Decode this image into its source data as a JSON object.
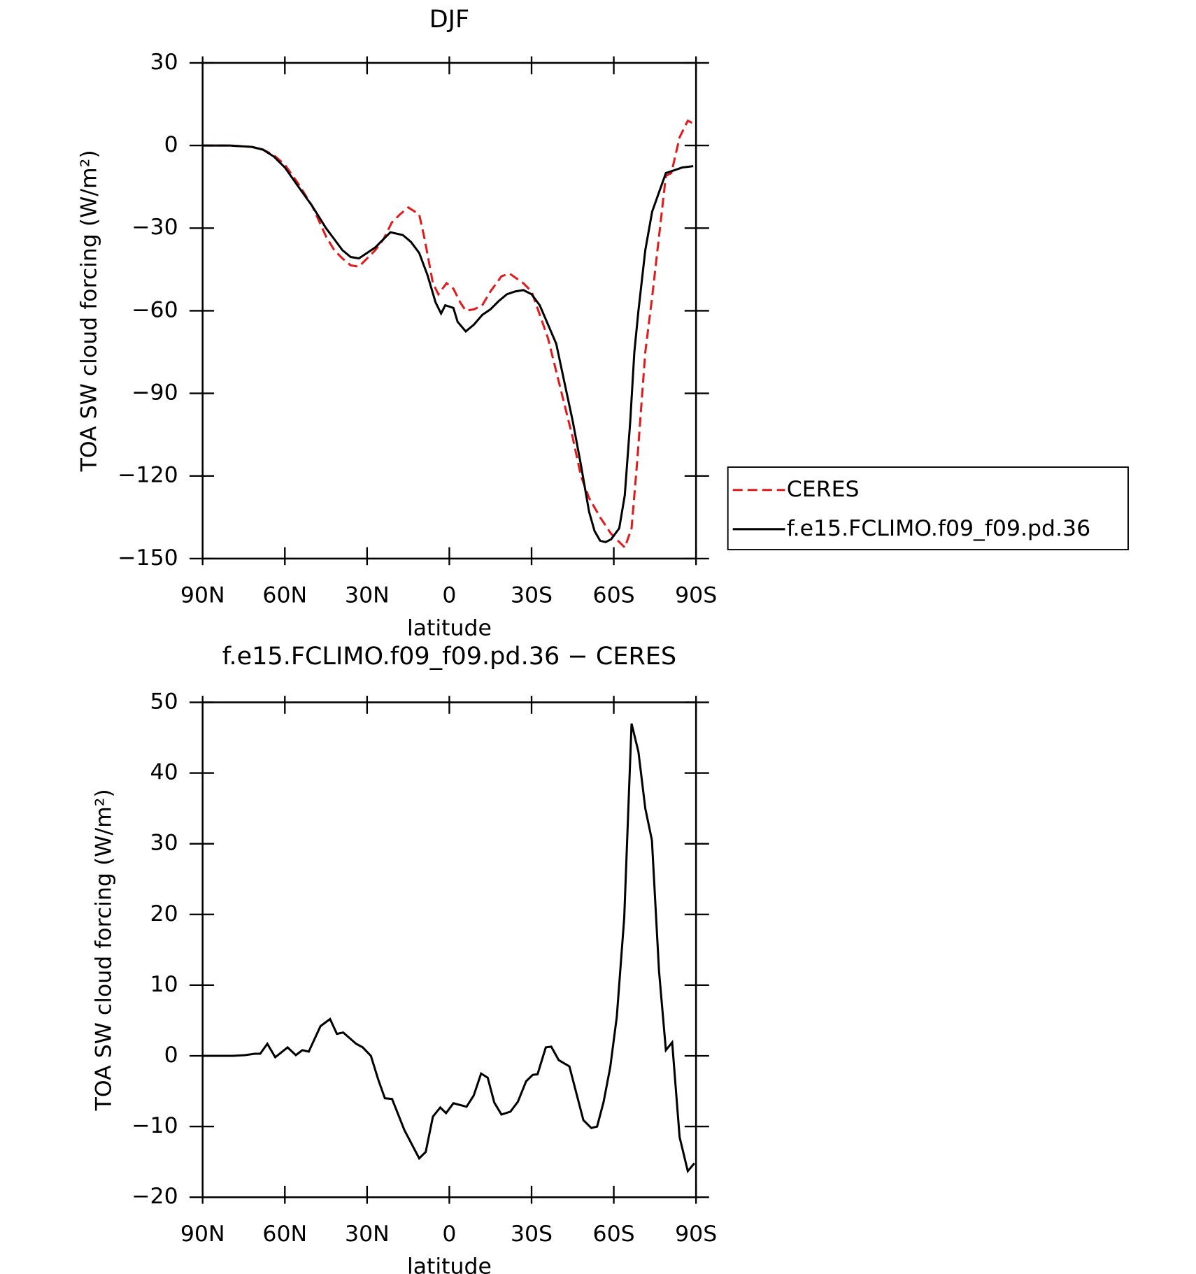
{
  "chart_data": [
    {
      "type": "line",
      "title": "DJF",
      "xlabel": "latitude",
      "ylabel": "TOA SW cloud forcing (W/m²)",
      "xlim": [
        90,
        -90
      ],
      "xticks": [
        {
          "value": 90,
          "label": "90N"
        },
        {
          "value": 60,
          "label": "60N"
        },
        {
          "value": 30,
          "label": "30N"
        },
        0,
        {
          "value": -30,
          "label": "30S"
        },
        {
          "value": -60,
          "label": "60S"
        },
        {
          "value": -90,
          "label": "90S"
        }
      ],
      "ylim": [
        -150,
        30
      ],
      "yticks": [
        {
          "value": -150,
          "label": "−150"
        },
        {
          "value": -120,
          "label": "−120"
        },
        {
          "value": -90,
          "label": "−90"
        },
        {
          "value": -60,
          "label": "−60"
        },
        {
          "value": -30,
          "label": "−30"
        },
        0,
        30
      ],
      "legend": "right",
      "series": [
        {
          "name": "CERES",
          "color": "#e31a1c",
          "linestyle": "dashed",
          "x": [
            90,
            80,
            72,
            68,
            64,
            60,
            55,
            50,
            45,
            42,
            39,
            36,
            33,
            30,
            27,
            24,
            21,
            18,
            15,
            11,
            9,
            6,
            4,
            1,
            -1.5,
            -4,
            -6,
            -9,
            -12,
            -15,
            -19,
            -22,
            -27,
            -30,
            -36,
            -40,
            -45,
            -48,
            -51,
            -55,
            -59,
            -64,
            -66.5,
            -68.5,
            -71.5,
            -74,
            -79,
            -81,
            -84,
            -87,
            -89
          ],
          "values": [
            0,
            0,
            -0.5,
            -1.5,
            -3.5,
            -7,
            -14,
            -22,
            -33,
            -38,
            -41,
            -43.5,
            -44,
            -41,
            -38,
            -34,
            -28,
            -25,
            -22.5,
            -25,
            -34,
            -50,
            -54,
            -50,
            -52,
            -57,
            -60,
            -59.5,
            -58,
            -53,
            -47.5,
            -46.5,
            -50,
            -53,
            -70,
            -86,
            -106,
            -120,
            -128,
            -135,
            -141,
            -146,
            -139,
            -115,
            -75,
            -55,
            -11,
            -10,
            3,
            9,
            8
          ]
        },
        {
          "name": "f.e15.FCLIMO.f09_f09.pd.36",
          "color": "#000000",
          "linestyle": "solid",
          "x": [
            90,
            80,
            72,
            68,
            64,
            60,
            55,
            50,
            45,
            42,
            39,
            36,
            33,
            30,
            27,
            24,
            21.5,
            17,
            14,
            11,
            8,
            5,
            3,
            1.5,
            0,
            -1.5,
            -3,
            -6,
            -9,
            -12,
            -15,
            -18,
            -21,
            -24,
            -27,
            -30,
            -33,
            -36,
            -39,
            -42,
            -45,
            -48,
            -51,
            -53,
            -55,
            -57,
            -59,
            -62,
            -64,
            -66,
            -67.5,
            -69,
            -71.5,
            -74,
            -76.5,
            -79,
            -82,
            -85,
            -89
          ],
          "values": [
            0,
            0,
            -0.5,
            -1.5,
            -4,
            -8,
            -15,
            -22,
            -30,
            -34,
            -38,
            -40.5,
            -41,
            -39,
            -37,
            -34,
            -31.5,
            -32.5,
            -35,
            -39,
            -47,
            -57,
            -61,
            -58,
            -58.5,
            -59,
            -64,
            -67.5,
            -65,
            -61.5,
            -59.5,
            -56.5,
            -54,
            -53,
            -52.5,
            -54,
            -58,
            -65,
            -72,
            -86,
            -100,
            -116,
            -133,
            -140,
            -143.5,
            -144,
            -143,
            -139,
            -127,
            -100,
            -75,
            -60,
            -38,
            -24,
            -17,
            -10,
            -9,
            -8,
            -7.5
          ]
        }
      ]
    },
    {
      "type": "line",
      "title": "f.e15.FCLIMO.f09_f09.pd.36 − CERES",
      "xlabel": "latitude",
      "ylabel": "TOA SW cloud forcing (W/m²)",
      "xlim": [
        90,
        -90
      ],
      "xticks": [
        {
          "value": 90,
          "label": "90N"
        },
        {
          "value": 60,
          "label": "60N"
        },
        {
          "value": 30,
          "label": "30N"
        },
        0,
        {
          "value": -30,
          "label": "30S"
        },
        {
          "value": -60,
          "label": "60S"
        },
        {
          "value": -90,
          "label": "90S"
        }
      ],
      "ylim": [
        -20,
        50
      ],
      "yticks": [
        {
          "value": -20,
          "label": "−20"
        },
        {
          "value": -10,
          "label": "−10"
        },
        0,
        10,
        20,
        30,
        40,
        50
      ],
      "series": [
        {
          "color": "#000000",
          "linestyle": "solid",
          "x": [
            90,
            79,
            74.5,
            71,
            69,
            66.4,
            63.5,
            59,
            56,
            53.6,
            51.3,
            47,
            43.5,
            41,
            38.7,
            34,
            31.6,
            28.6,
            26,
            23.5,
            20.9,
            16.4,
            11,
            8.6,
            6,
            3.3,
            1.2,
            -1.5,
            -6.3,
            -8.9,
            -11.6,
            -14,
            -16.4,
            -19,
            -22.3,
            -25,
            -28,
            -30.4,
            -32.2,
            -35.2,
            -37.2,
            -39.9,
            -43.8,
            -48.9,
            -51.8,
            -53.9,
            -56.3,
            -58.7,
            -61.1,
            -63.8,
            -66.5,
            -69,
            -71.5,
            -73.9,
            -76.5,
            -79,
            -81.3,
            -84,
            -87,
            -89.4
          ],
          "values": [
            0,
            0,
            0.1,
            0.3,
            0.3,
            1.7,
            -0.2,
            1.2,
            0.1,
            0.8,
            0.6,
            4.2,
            5.2,
            3.1,
            3.3,
            1.7,
            1.2,
            0,
            -3.3,
            -6,
            -6.1,
            -10.5,
            -14.5,
            -13.6,
            -8.6,
            -7.3,
            -8.1,
            -6.7,
            -7.2,
            -5.6,
            -2.5,
            -3.1,
            -6.6,
            -8.3,
            -7.9,
            -6.5,
            -3.6,
            -2.7,
            -2.6,
            1.2,
            1.3,
            -0.6,
            -1.5,
            -9.1,
            -10.2,
            -10,
            -6.5,
            -1.6,
            5.5,
            19.5,
            47,
            43,
            35,
            30.5,
            12,
            0.8,
            1.9,
            -11.5,
            -16.3,
            -15.2
          ]
        }
      ]
    }
  ]
}
